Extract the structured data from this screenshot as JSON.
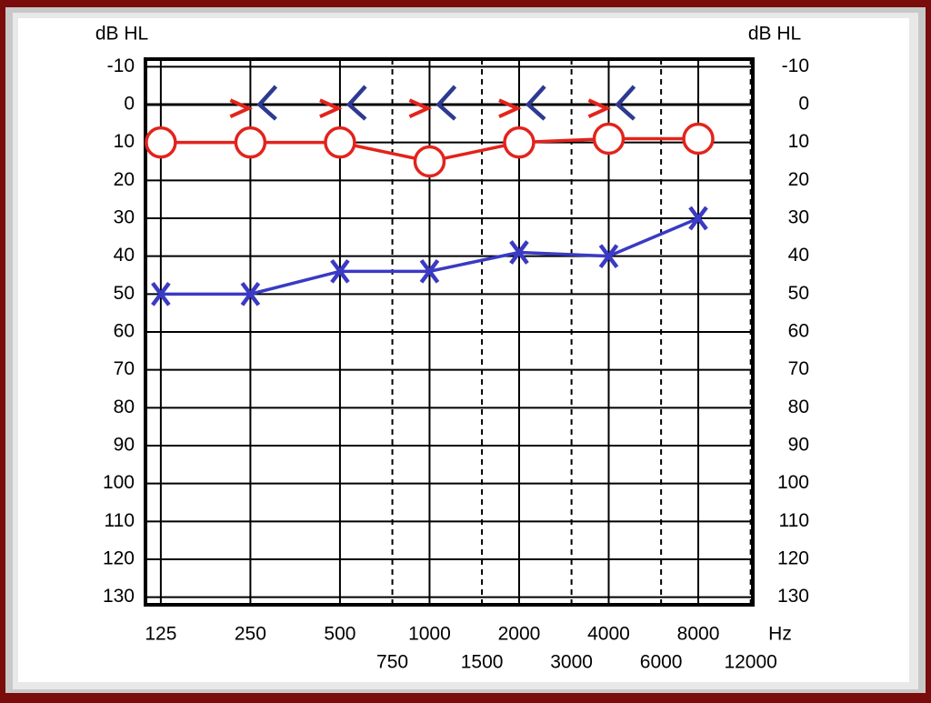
{
  "chart_data": {
    "type": "audiogram",
    "y_label": "dB HL",
    "x_label": "Hz",
    "x": [
      125,
      250,
      500,
      1000,
      2000,
      4000,
      8000
    ],
    "xlim": [
      111,
      12200
    ],
    "xticks": [
      125,
      250,
      500,
      1000,
      2000,
      4000,
      8000
    ],
    "xticks_minor": [
      750,
      1500,
      3000,
      6000,
      12000
    ],
    "log_x": true,
    "ylim": [
      -12,
      132
    ],
    "y_inverted": true,
    "yticks": [
      -10,
      0,
      10,
      20,
      30,
      40,
      50,
      60,
      70,
      80,
      90,
      100,
      110,
      120,
      130
    ],
    "grid": true,
    "series": [
      {
        "marker": "circle",
        "color": "#e3231c",
        "line": true,
        "values": [
          10,
          10,
          10,
          15,
          10,
          9,
          9
        ]
      },
      {
        "marker": "cross",
        "color": "#3a3ac4",
        "line": true,
        "values": [
          50,
          50,
          44,
          44,
          39,
          40,
          30
        ]
      },
      {
        "marker": "right-chevron",
        "color": "#e3231c",
        "line": false,
        "values": [
          null,
          1,
          1,
          1,
          1,
          1,
          null
        ]
      },
      {
        "marker": "left-chevron",
        "color": "#2d3a90",
        "line": false,
        "values": [
          null,
          0,
          0,
          0,
          0,
          0,
          null
        ]
      }
    ]
  }
}
